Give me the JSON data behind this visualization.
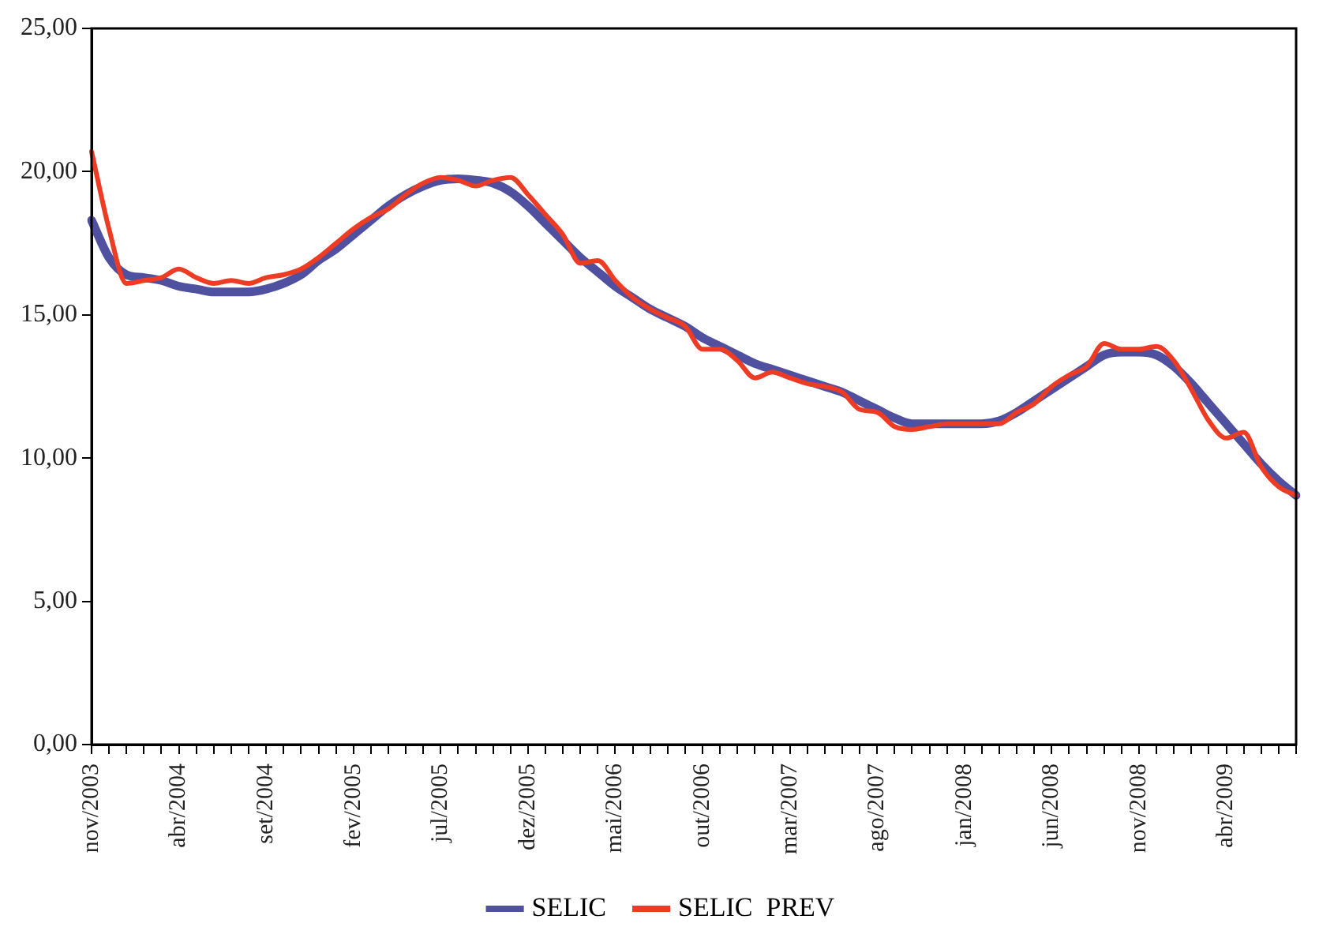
{
  "chart_data": {
    "type": "line",
    "categories": [
      "nov/2003",
      null,
      null,
      null,
      null,
      "abr/2004",
      null,
      null,
      null,
      null,
      "set/2004",
      null,
      null,
      null,
      null,
      "fev/2005",
      null,
      null,
      null,
      null,
      "jul/2005",
      null,
      null,
      null,
      null,
      "dez/2005",
      null,
      null,
      null,
      null,
      "mai/2006",
      null,
      null,
      null,
      null,
      "out/2006",
      null,
      null,
      null,
      null,
      "mar/2007",
      null,
      null,
      null,
      null,
      "ago/2007",
      null,
      null,
      null,
      null,
      "jan/2008",
      null,
      null,
      null,
      null,
      "jun/2008",
      null,
      null,
      null,
      null,
      "nov/2008",
      null,
      null,
      null,
      null,
      "abr/2009",
      null,
      null,
      null,
      null
    ],
    "series": [
      {
        "name": "SELIC",
        "color": "#5050a0",
        "values": [
          18.3,
          17.0,
          16.4,
          16.3,
          16.2,
          16.0,
          15.9,
          15.8,
          15.8,
          15.8,
          15.9,
          16.1,
          16.4,
          16.9,
          17.3,
          17.8,
          18.3,
          18.8,
          19.2,
          19.5,
          19.7,
          19.75,
          19.7,
          19.6,
          19.3,
          18.8,
          18.2,
          17.6,
          17.0,
          16.5,
          16.0,
          15.6,
          15.2,
          14.9,
          14.6,
          14.2,
          13.9,
          13.6,
          13.3,
          13.1,
          12.9,
          12.7,
          12.5,
          12.3,
          12.0,
          11.7,
          11.4,
          11.2,
          11.2,
          11.2,
          11.2,
          11.2,
          11.3,
          11.6,
          12.0,
          12.4,
          12.8,
          13.2,
          13.6,
          13.7,
          13.7,
          13.6,
          13.2,
          12.6,
          11.9,
          11.2,
          10.5,
          9.8,
          9.2,
          8.7
        ]
      },
      {
        "name": "SELIC  PREV",
        "color": "#ee3b24",
        "values": [
          20.7,
          18.0,
          16.1,
          16.2,
          16.3,
          16.6,
          16.3,
          16.1,
          16.2,
          16.1,
          16.3,
          16.4,
          16.6,
          17.0,
          17.5,
          18.0,
          18.4,
          18.7,
          19.2,
          19.6,
          19.8,
          19.7,
          19.5,
          19.7,
          19.8,
          19.2,
          18.5,
          17.8,
          16.8,
          16.9,
          16.2,
          15.6,
          15.2,
          14.9,
          14.6,
          13.8,
          13.8,
          13.4,
          12.8,
          13.0,
          12.8,
          12.6,
          12.5,
          12.3,
          11.7,
          11.6,
          11.1,
          11.0,
          11.1,
          11.2,
          11.2,
          11.2,
          11.2,
          11.6,
          11.9,
          12.5,
          12.9,
          13.2,
          14.0,
          13.8,
          13.8,
          13.9,
          13.4,
          12.4,
          11.3,
          10.7,
          10.9,
          9.7,
          9.0,
          8.7
        ]
      }
    ],
    "ylim": [
      0,
      25
    ],
    "yticks": [
      {
        "value": 0,
        "label": "0,00"
      },
      {
        "value": 5,
        "label": "5,00"
      },
      {
        "value": 10,
        "label": "10,00"
      },
      {
        "value": 15,
        "label": "15,00"
      },
      {
        "value": 20,
        "label": "20,00"
      },
      {
        "value": 25,
        "label": "25,00"
      }
    ],
    "grid": false,
    "legend": "bottom",
    "marker": "none",
    "line_style": "solid"
  }
}
